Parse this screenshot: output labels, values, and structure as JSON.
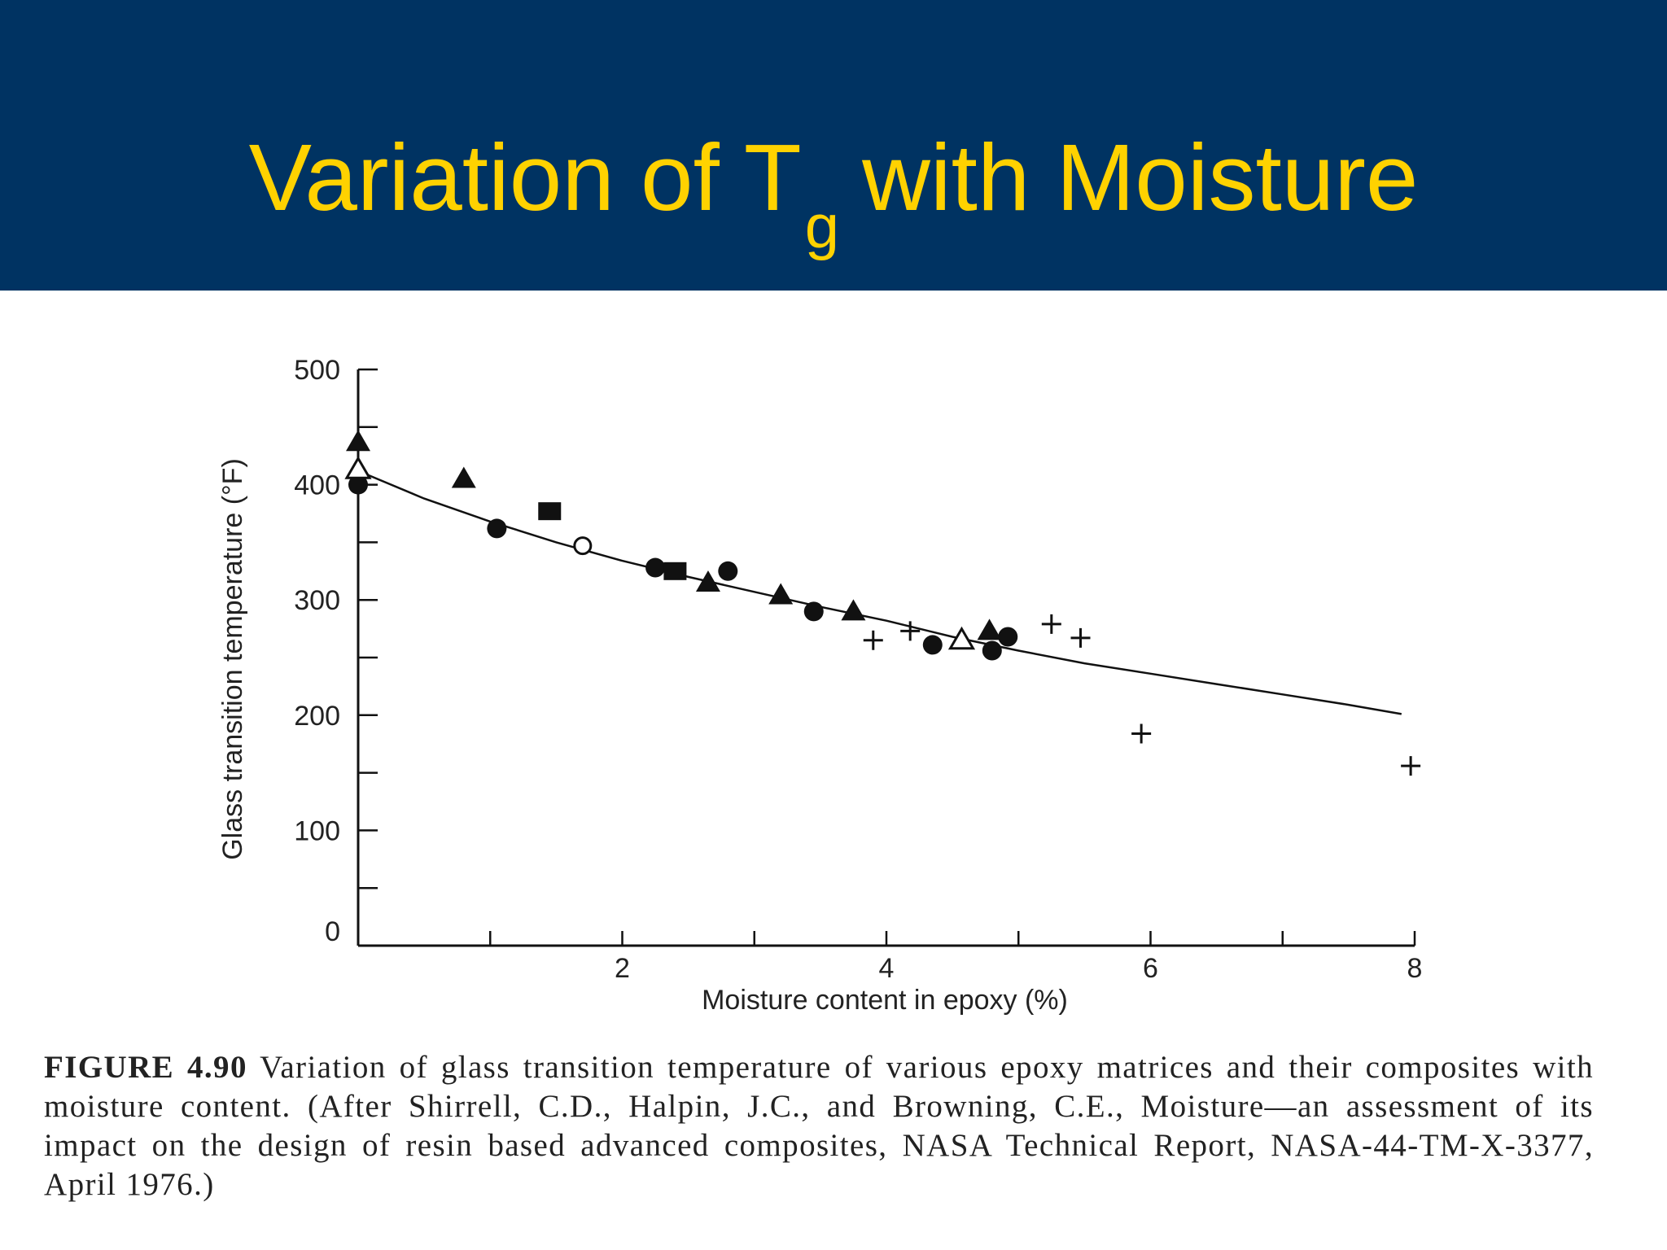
{
  "slide": {
    "title_main": "Variation of T",
    "title_sub": "g",
    "title_rest": "with Moisture",
    "title_color": "#FFD200",
    "header_color": "#003362"
  },
  "chart_data": {
    "type": "scatter",
    "title": "",
    "xlabel": "Moisture content in epoxy (%)",
    "ylabel": "Glass transition temperature (°F)",
    "xlim": [
      0,
      8
    ],
    "ylim": [
      0,
      500
    ],
    "x_ticks": [
      1,
      2,
      3,
      4,
      5,
      6,
      7,
      8
    ],
    "x_tick_labels": [
      "2",
      "4",
      "6",
      "8"
    ],
    "x_tick_label_values": [
      2,
      4,
      6,
      8
    ],
    "y_ticks": [
      0,
      50,
      100,
      150,
      200,
      250,
      300,
      350,
      400,
      450,
      500
    ],
    "y_tick_labels": [
      "0",
      "100",
      "200",
      "300",
      "400",
      "500"
    ],
    "y_tick_label_values": [
      0,
      100,
      200,
      300,
      400,
      500
    ],
    "grid": false,
    "series": [
      {
        "marker": "filled-circle",
        "points": [
          [
            0,
            400
          ],
          [
            1.05,
            362
          ],
          [
            2.25,
            328
          ],
          [
            2.8,
            325
          ],
          [
            3.45,
            290
          ],
          [
            4.35,
            261
          ],
          [
            4.8,
            256
          ],
          [
            4.92,
            268
          ]
        ]
      },
      {
        "marker": "filled-triangle",
        "points": [
          [
            0,
            437
          ],
          [
            0.8,
            405
          ],
          [
            2.65,
            315
          ],
          [
            3.2,
            304
          ],
          [
            3.75,
            290
          ],
          [
            4.78,
            273
          ]
        ]
      },
      {
        "marker": "open-triangle",
        "points": [
          [
            0,
            413
          ],
          [
            4.57,
            265
          ]
        ]
      },
      {
        "marker": "filled-square",
        "points": [
          [
            1.45,
            377
          ],
          [
            2.4,
            325
          ]
        ]
      },
      {
        "marker": "open-circle",
        "points": [
          [
            1.7,
            347
          ]
        ]
      },
      {
        "marker": "plus",
        "points": [
          [
            3.9,
            265
          ],
          [
            4.18,
            273
          ],
          [
            5.25,
            279
          ],
          [
            5.47,
            267
          ],
          [
            5.93,
            184
          ],
          [
            7.97,
            156
          ]
        ]
      }
    ],
    "fit_curve": [
      [
        0,
        412
      ],
      [
        0.5,
        388
      ],
      [
        1,
        368
      ],
      [
        1.5,
        350
      ],
      [
        2,
        334
      ],
      [
        2.5,
        320
      ],
      [
        3,
        307
      ],
      [
        3.5,
        294
      ],
      [
        4,
        282
      ],
      [
        4.5,
        268
      ],
      [
        5,
        256
      ],
      [
        5.5,
        245
      ],
      [
        6,
        236
      ],
      [
        6.5,
        227
      ],
      [
        7,
        218
      ],
      [
        7.5,
        209
      ],
      [
        7.9,
        201
      ]
    ]
  },
  "caption": {
    "figure_label": "FIGURE 4.90",
    "text": "Variation of glass transition temperature of various epoxy matrices and their composites with moisture content. (After Shirrell, C.D., Halpin, J.C., and Browning, C.E., Moisture—an assessment of its impact on the design of resin based advanced composites, NASA Technical Report, NASA-44-TM-X-3377, April 1976.)"
  }
}
